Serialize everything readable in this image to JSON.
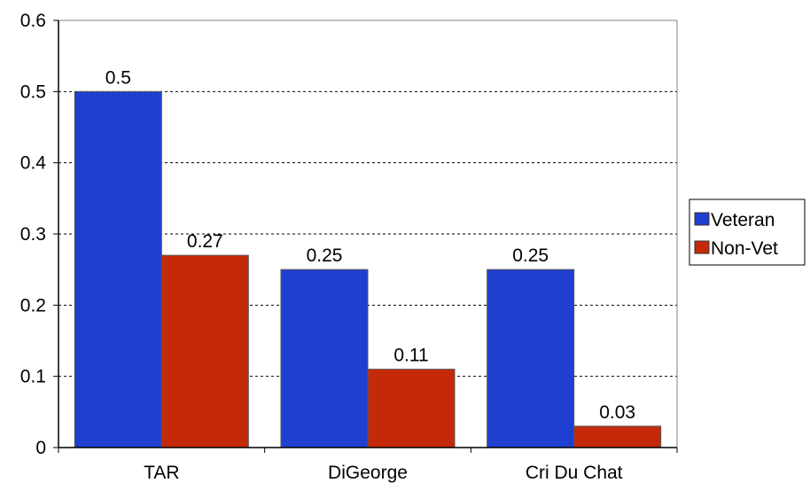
{
  "chart_data": {
    "type": "bar",
    "categories": [
      "TAR",
      "DiGeorge",
      "Cri Du Chat"
    ],
    "series": [
      {
        "name": "Veteran",
        "values": [
          0.5,
          0.25,
          0.25
        ],
        "color": "#1f3fd0"
      },
      {
        "name": "Non-Vet",
        "values": [
          0.27,
          0.11,
          0.03
        ],
        "color": "#c42a0a"
      }
    ],
    "data_labels": [
      [
        "0.5",
        "0.25",
        "0.25"
      ],
      [
        "0.27",
        "0.11",
        "0.03"
      ]
    ],
    "ylim": [
      0,
      0.6
    ],
    "yticks": [
      "0",
      "0.1",
      "0.2",
      "0.3",
      "0.4",
      "0.5",
      "0.6"
    ],
    "title": "",
    "xlabel": "",
    "ylabel": "",
    "grid": "horizontal dashed",
    "legend": "right"
  }
}
